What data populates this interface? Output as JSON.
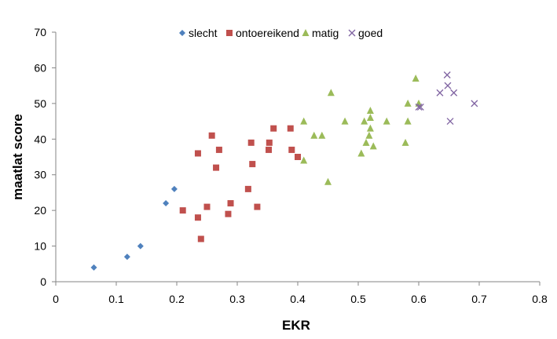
{
  "chart_data": {
    "type": "scatter",
    "title": "",
    "xlabel": "EKR",
    "ylabel": "maatlat score",
    "xlim": [
      0,
      0.8
    ],
    "ylim": [
      0,
      70
    ],
    "xticks": [
      "0",
      "0.1",
      "0.2",
      "0.3",
      "0.4",
      "0.5",
      "0.6",
      "0.7",
      "0.8"
    ],
    "yticks": [
      "0",
      "10",
      "20",
      "30",
      "40",
      "50",
      "60",
      "70"
    ],
    "grid": false,
    "legend_position": "top",
    "series": [
      {
        "name": "slecht",
        "marker": "diamond",
        "color": "#4f81bd",
        "points": [
          [
            0.063,
            4
          ],
          [
            0.118,
            7
          ],
          [
            0.14,
            10
          ],
          [
            0.182,
            22
          ],
          [
            0.196,
            26
          ]
        ]
      },
      {
        "name": "ontoereikend",
        "marker": "square",
        "color": "#c0504d",
        "points": [
          [
            0.21,
            20
          ],
          [
            0.235,
            18
          ],
          [
            0.235,
            36
          ],
          [
            0.24,
            12
          ],
          [
            0.25,
            21
          ],
          [
            0.258,
            41
          ],
          [
            0.265,
            32
          ],
          [
            0.27,
            37
          ],
          [
            0.285,
            19
          ],
          [
            0.289,
            22
          ],
          [
            0.318,
            26
          ],
          [
            0.323,
            39
          ],
          [
            0.325,
            33
          ],
          [
            0.333,
            21
          ],
          [
            0.352,
            37
          ],
          [
            0.353,
            39
          ],
          [
            0.36,
            43
          ],
          [
            0.388,
            43
          ],
          [
            0.39,
            37
          ],
          [
            0.4,
            35
          ]
        ]
      },
      {
        "name": "matig",
        "marker": "triangle",
        "color": "#9bbb59",
        "points": [
          [
            0.41,
            45
          ],
          [
            0.41,
            34
          ],
          [
            0.427,
            41
          ],
          [
            0.44,
            41
          ],
          [
            0.45,
            28
          ],
          [
            0.455,
            53
          ],
          [
            0.478,
            45
          ],
          [
            0.505,
            36
          ],
          [
            0.51,
            45
          ],
          [
            0.513,
            39
          ],
          [
            0.518,
            41
          ],
          [
            0.52,
            43
          ],
          [
            0.52,
            46
          ],
          [
            0.52,
            48
          ],
          [
            0.525,
            38
          ],
          [
            0.547,
            45
          ],
          [
            0.578,
            39
          ],
          [
            0.582,
            45
          ],
          [
            0.582,
            50
          ],
          [
            0.595,
            57
          ],
          [
            0.6,
            50
          ]
        ]
      },
      {
        "name": "goed",
        "marker": "x",
        "color": "#8064a2",
        "points": [
          [
            0.6,
            49
          ],
          [
            0.603,
            49
          ],
          [
            0.635,
            53
          ],
          [
            0.647,
            58
          ],
          [
            0.648,
            55
          ],
          [
            0.652,
            45
          ],
          [
            0.658,
            53
          ],
          [
            0.692,
            50
          ]
        ]
      }
    ]
  }
}
